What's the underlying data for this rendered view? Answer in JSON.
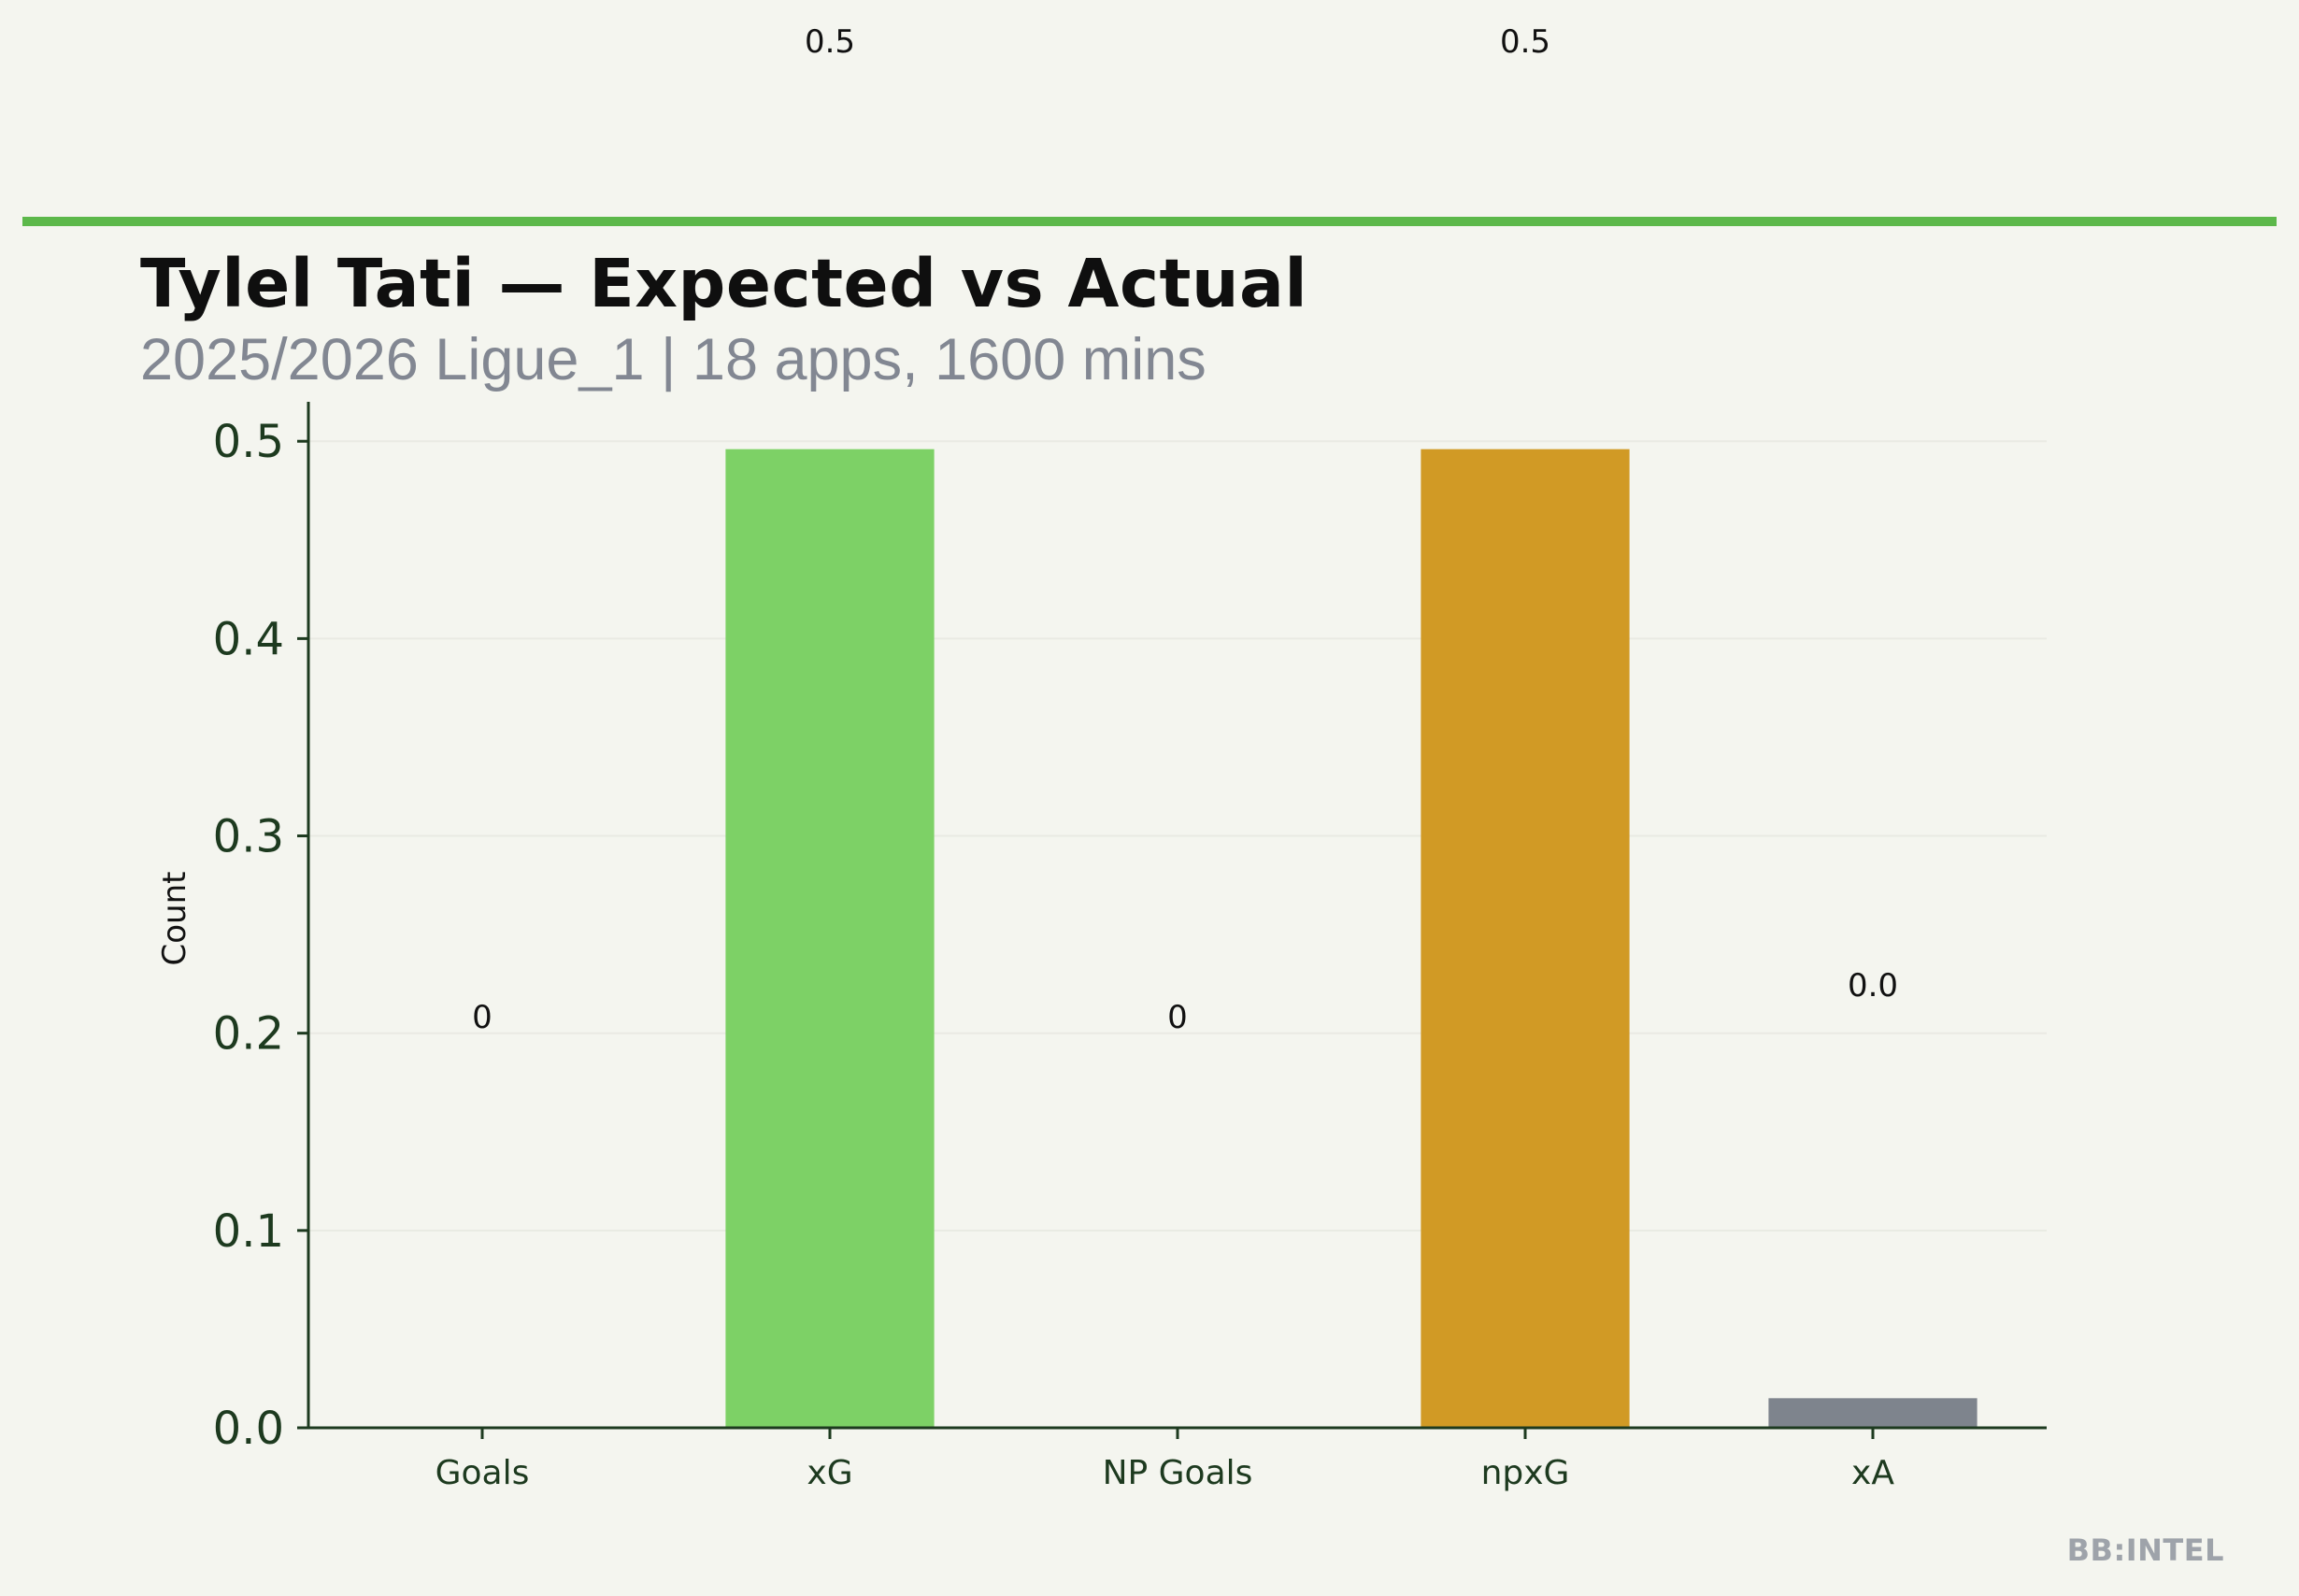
{
  "chart_data": {
    "type": "bar",
    "title": "Tylel Tati — Expected vs Actual",
    "subtitle": "2025/2026 Ligue_1 | 18 apps, 1600 mins",
    "ylabel": "Count",
    "categories": [
      "Goals",
      "xG",
      "NP Goals",
      "npxG",
      "xA"
    ],
    "values": [
      0,
      0.496,
      0,
      0.496,
      0.015
    ],
    "data_labels": [
      "0",
      "0.5",
      "0",
      "0.5",
      "0.0"
    ],
    "colors": [
      "#5cb84a",
      "#7dd166",
      "#5cb84a",
      "#d19a25",
      "#7e848d"
    ],
    "ylim": [
      0,
      0.52
    ],
    "yticks": [
      "0.0",
      "0.1",
      "0.2",
      "0.3",
      "0.4",
      "0.5"
    ],
    "grid": "horizontal",
    "accent_color": "#5cb84a",
    "top_labels": [
      "0.5",
      "0.5"
    ]
  },
  "watermark": "BB:INTEL"
}
